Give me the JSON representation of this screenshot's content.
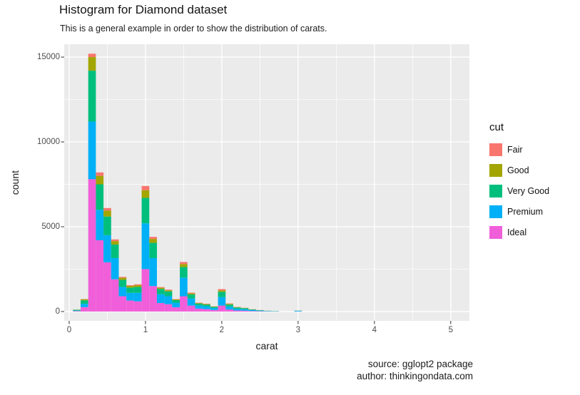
{
  "chart_data": {
    "type": "bar",
    "subtype": "stacked-histogram",
    "title": "Histogram for Diamond dataset",
    "subtitle": "This is a general example in order to show the distribution of carats.",
    "xlabel": "carat",
    "ylabel": "count",
    "x_ticks": [
      0,
      1,
      2,
      3,
      4,
      5
    ],
    "y_ticks": [
      0,
      5000,
      10000,
      15000
    ],
    "x_minor_ticks": [
      0.5,
      1.5,
      2.5,
      3.5,
      4.5
    ],
    "y_minor_ticks": [
      2500,
      7500,
      12500
    ],
    "xlim": [
      -0.065,
      5.245
    ],
    "ylim": [
      -550,
      15760
    ],
    "binwidth": 0.1,
    "panel_background": "#EBEBEB",
    "grid_color": "#FFFFFF",
    "bin_centers": [
      0.1,
      0.2,
      0.3,
      0.4,
      0.5,
      0.6,
      0.7,
      0.8,
      0.9,
      1.0,
      1.1,
      1.2,
      1.3,
      1.4,
      1.5,
      1.6,
      1.7,
      1.8,
      1.9,
      2.0,
      2.1,
      2.2,
      2.3,
      2.4,
      2.5,
      2.6,
      2.7,
      3.0
    ],
    "stack_order": "first series at bottom",
    "series": [
      {
        "name": "Ideal",
        "color": "#F05FD9",
        "values": [
          30,
          260,
          7800,
          4200,
          2900,
          1900,
          900,
          650,
          600,
          2500,
          1500,
          500,
          430,
          250,
          900,
          350,
          170,
          140,
          90,
          350,
          120,
          60,
          50,
          30,
          20,
          10,
          5,
          8
        ]
      },
      {
        "name": "Premium",
        "color": "#00B0F6",
        "values": [
          25,
          190,
          3400,
          1800,
          1600,
          1250,
          550,
          450,
          500,
          2700,
          1650,
          520,
          470,
          270,
          1100,
          420,
          190,
          170,
          120,
          500,
          180,
          110,
          90,
          55,
          35,
          20,
          12,
          30
        ]
      },
      {
        "name": "Very Good",
        "color": "#00BF7D",
        "values": [
          45,
          210,
          3000,
          1500,
          1100,
          800,
          420,
          310,
          350,
          1500,
          900,
          310,
          290,
          150,
          620,
          240,
          110,
          100,
          70,
          310,
          110,
          70,
          55,
          35,
          22,
          14,
          8,
          12
        ]
      },
      {
        "name": "Good",
        "color": "#A3A500",
        "values": [
          8,
          60,
          800,
          500,
          350,
          200,
          120,
          100,
          100,
          450,
          230,
          70,
          60,
          40,
          180,
          60,
          30,
          30,
          20,
          90,
          40,
          20,
          15,
          8,
          6,
          3,
          2,
          3
        ]
      },
      {
        "name": "Fair",
        "color": "#F8766D",
        "values": [
          2,
          15,
          200,
          200,
          150,
          100,
          50,
          40,
          50,
          250,
          120,
          40,
          40,
          20,
          120,
          40,
          20,
          20,
          10,
          70,
          25,
          15,
          10,
          7,
          5,
          3,
          2,
          2
        ]
      }
    ]
  },
  "legend": {
    "title": "cut",
    "items": [
      {
        "label": "Fair",
        "color": "#F8766D"
      },
      {
        "label": "Good",
        "color": "#A3A500"
      },
      {
        "label": "Very Good",
        "color": "#00BF7D"
      },
      {
        "label": "Premium",
        "color": "#00B0F6"
      },
      {
        "label": "Ideal",
        "color": "#F05FD9"
      }
    ]
  },
  "caption": {
    "line1": "source: gglopt2 package",
    "line2": "author: thinkingondata.com"
  }
}
